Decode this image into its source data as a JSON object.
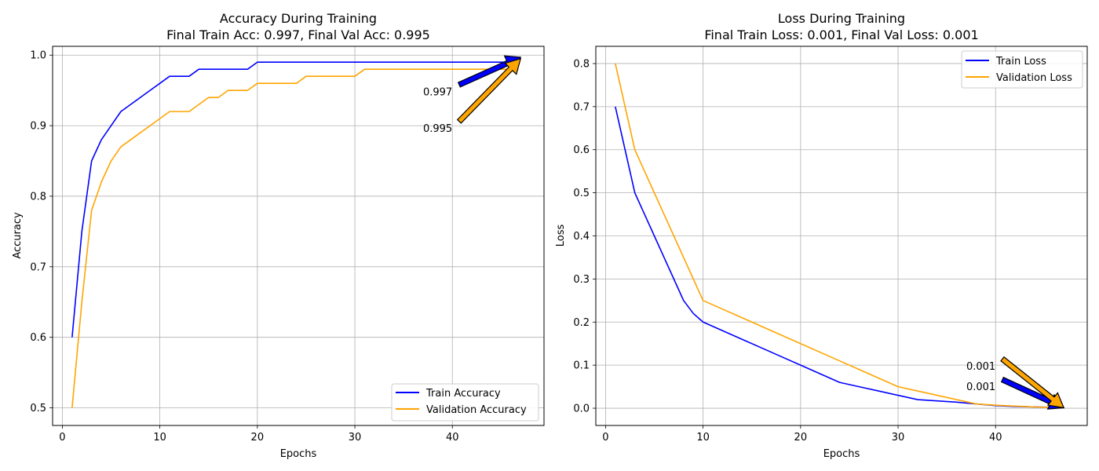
{
  "chart_data": [
    {
      "type": "line",
      "title": "Accuracy During Training",
      "subtitle": "Final Train Acc: 0.997, Final Val Acc: 0.995",
      "xlabel": "Epochs",
      "ylabel": "Accuracy",
      "xlim": [
        -1,
        49.4
      ],
      "ylim": [
        0.475,
        1.0125
      ],
      "xticks": [
        0,
        10,
        20,
        30,
        40
      ],
      "yticks": [
        0.5,
        0.6,
        0.7,
        0.8,
        0.9,
        1.0
      ],
      "ytick_labels": [
        "0.5",
        "0.6",
        "0.7",
        "0.8",
        "0.9",
        "1.0"
      ],
      "grid": true,
      "legend_position": "lower-right",
      "series": [
        {
          "name": "Train Accuracy",
          "color": "#0000ff",
          "x": [
            1,
            2,
            3,
            4,
            5,
            6,
            7,
            8,
            9,
            10,
            11,
            12,
            13,
            14,
            15,
            16,
            17,
            18,
            19,
            20,
            21,
            22,
            23,
            24,
            25,
            26,
            27,
            28,
            29,
            30,
            31,
            32,
            33,
            34,
            35,
            36,
            37,
            38,
            39,
            40,
            41,
            42,
            43,
            44,
            45,
            46,
            47
          ],
          "values": [
            0.6,
            0.75,
            0.85,
            0.88,
            0.9,
            0.92,
            0.93,
            0.94,
            0.95,
            0.96,
            0.97,
            0.97,
            0.97,
            0.98,
            0.98,
            0.98,
            0.98,
            0.98,
            0.98,
            0.99,
            0.99,
            0.99,
            0.99,
            0.99,
            0.99,
            0.99,
            0.99,
            0.99,
            0.99,
            0.99,
            0.99,
            0.99,
            0.99,
            0.99,
            0.99,
            0.99,
            0.99,
            0.99,
            0.99,
            0.99,
            0.99,
            0.99,
            0.99,
            0.99,
            0.99,
            0.99,
            0.997
          ]
        },
        {
          "name": "Validation Accuracy",
          "color": "#ffa500",
          "x": [
            1,
            2,
            3,
            4,
            5,
            6,
            7,
            8,
            9,
            10,
            11,
            12,
            13,
            14,
            15,
            16,
            17,
            18,
            19,
            20,
            21,
            22,
            23,
            24,
            25,
            26,
            27,
            28,
            29,
            30,
            31,
            32,
            33,
            34,
            35,
            36,
            37,
            38,
            39,
            40,
            41,
            42,
            43,
            44,
            45,
            46,
            47
          ],
          "values": [
            0.5,
            0.65,
            0.78,
            0.82,
            0.85,
            0.87,
            0.88,
            0.89,
            0.9,
            0.91,
            0.92,
            0.92,
            0.92,
            0.93,
            0.94,
            0.94,
            0.95,
            0.95,
            0.95,
            0.96,
            0.96,
            0.96,
            0.96,
            0.96,
            0.97,
            0.97,
            0.97,
            0.97,
            0.97,
            0.97,
            0.98,
            0.98,
            0.98,
            0.98,
            0.98,
            0.98,
            0.98,
            0.98,
            0.98,
            0.98,
            0.98,
            0.98,
            0.98,
            0.98,
            0.98,
            0.98,
            0.995
          ]
        }
      ],
      "annotations": [
        {
          "text": "0.997",
          "point": [
            47,
            0.997
          ],
          "text_at": [
            37,
            0.948
          ],
          "color": "#0000ff"
        },
        {
          "text": "0.995",
          "point": [
            47,
            0.995
          ],
          "text_at": [
            37,
            0.896
          ],
          "color": "#ffa500"
        }
      ]
    },
    {
      "type": "line",
      "title": "Loss During Training",
      "subtitle": "Final Train Loss: 0.001, Final Val Loss: 0.001",
      "xlabel": "Epochs",
      "ylabel": "Loss",
      "xlim": [
        -1,
        49.4
      ],
      "ylim": [
        -0.04,
        0.84
      ],
      "xticks": [
        0,
        10,
        20,
        30,
        40
      ],
      "yticks": [
        0.0,
        0.1,
        0.2,
        0.3,
        0.4,
        0.5,
        0.6,
        0.7,
        0.8
      ],
      "ytick_labels": [
        "0.0",
        "0.1",
        "0.2",
        "0.3",
        "0.4",
        "0.5",
        "0.6",
        "0.7",
        "0.8"
      ],
      "grid": true,
      "legend_position": "upper-right",
      "series": [
        {
          "name": "Train Loss",
          "color": "#0000ff",
          "x": [
            1,
            2,
            3,
            4,
            5,
            6,
            7,
            8,
            9,
            10,
            12,
            14,
            16,
            18,
            20,
            22,
            24,
            26,
            28,
            30,
            32,
            34,
            36,
            38,
            40,
            42,
            44,
            46,
            47
          ],
          "values": [
            0.7,
            0.6,
            0.5,
            0.45,
            0.4,
            0.35,
            0.3,
            0.25,
            0.22,
            0.2,
            0.18,
            0.16,
            0.14,
            0.12,
            0.1,
            0.08,
            0.06,
            0.05,
            0.04,
            0.03,
            0.02,
            0.017,
            0.014,
            0.01,
            0.006,
            0.004,
            0.003,
            0.002,
            0.001
          ]
        },
        {
          "name": "Validation Loss",
          "color": "#ffa500",
          "x": [
            1,
            2,
            3,
            4,
            5,
            6,
            7,
            8,
            9,
            10,
            12,
            14,
            16,
            18,
            20,
            22,
            24,
            26,
            28,
            30,
            32,
            34,
            36,
            38,
            40,
            42,
            44,
            46,
            47
          ],
          "values": [
            0.8,
            0.7,
            0.6,
            0.55,
            0.5,
            0.45,
            0.4,
            0.35,
            0.3,
            0.25,
            0.23,
            0.21,
            0.19,
            0.17,
            0.15,
            0.13,
            0.11,
            0.09,
            0.07,
            0.05,
            0.04,
            0.03,
            0.02,
            0.01,
            0.007,
            0.005,
            0.003,
            0.002,
            0.001
          ]
        }
      ],
      "annotations": [
        {
          "text": "0.001",
          "point": [
            47,
            0.001
          ],
          "text_at": [
            37,
            0.05
          ],
          "color": "#0000ff"
        },
        {
          "text": "0.001",
          "point": [
            47,
            0.001
          ],
          "text_at": [
            37,
            0.098
          ],
          "color": "#ffa500"
        }
      ]
    }
  ]
}
